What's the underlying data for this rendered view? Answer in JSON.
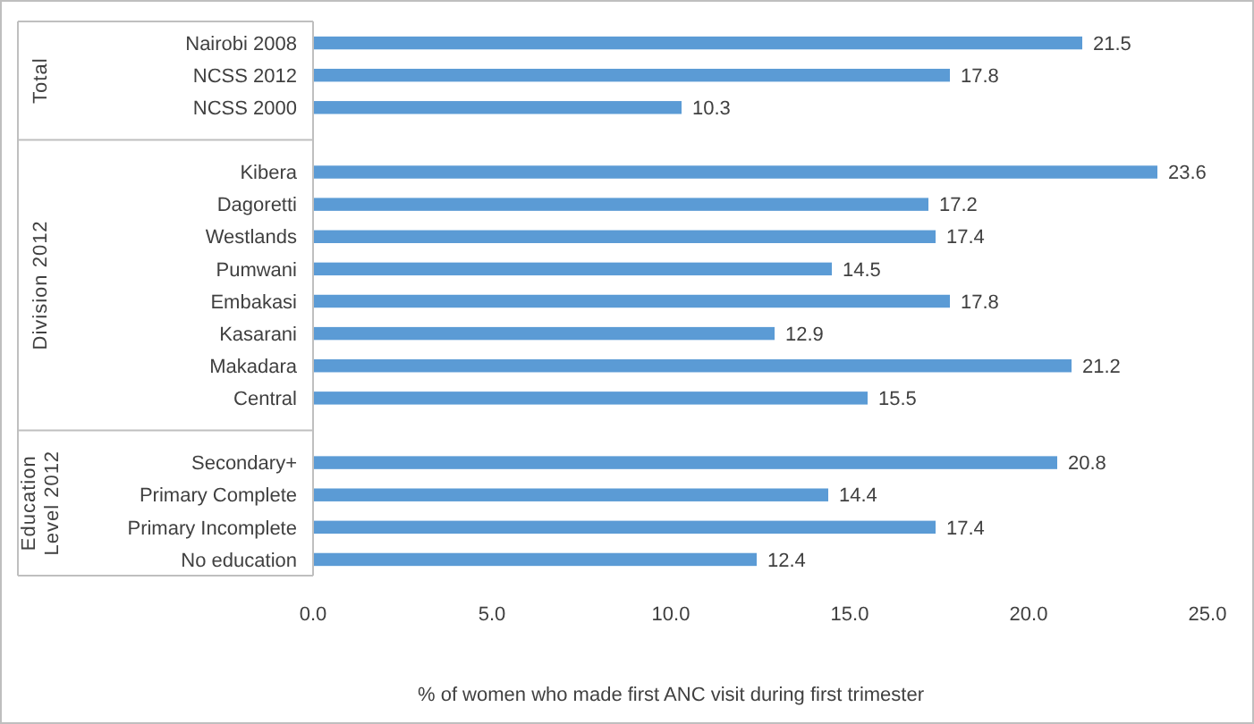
{
  "chart_data": {
    "type": "bar",
    "orientation": "horizontal",
    "xlabel": "% of women who made first ANC visit during first trimester",
    "categories": [
      "Nairobi 2008",
      "NCSS 2012",
      "NCSS 2000",
      null,
      "Kibera",
      "Dagoretti",
      "Westlands",
      "Pumwani",
      "Embakasi",
      "Kasarani",
      "Makadara",
      "Central",
      null,
      "Secondary+",
      "Primary Complete",
      "Primary Incomplete",
      "No education"
    ],
    "values": [
      21.5,
      17.8,
      10.3,
      null,
      23.6,
      17.2,
      17.4,
      14.5,
      17.8,
      12.9,
      21.2,
      15.5,
      null,
      20.8,
      14.4,
      17.4,
      12.4
    ],
    "color": "#5b9bd5",
    "data_labels": true,
    "xlim": [
      0,
      25
    ],
    "xticks": [
      {
        "value": 0,
        "label": "0.0"
      },
      {
        "value": 5,
        "label": "5.0"
      },
      {
        "value": 10,
        "label": "10.0"
      },
      {
        "value": 15,
        "label": "15.0"
      },
      {
        "value": 20,
        "label": "20.0"
      },
      {
        "value": 25,
        "label": "25.0"
      }
    ],
    "annotations": [
      "Total",
      "Division 2012",
      "Education Level 2012"
    ]
  }
}
